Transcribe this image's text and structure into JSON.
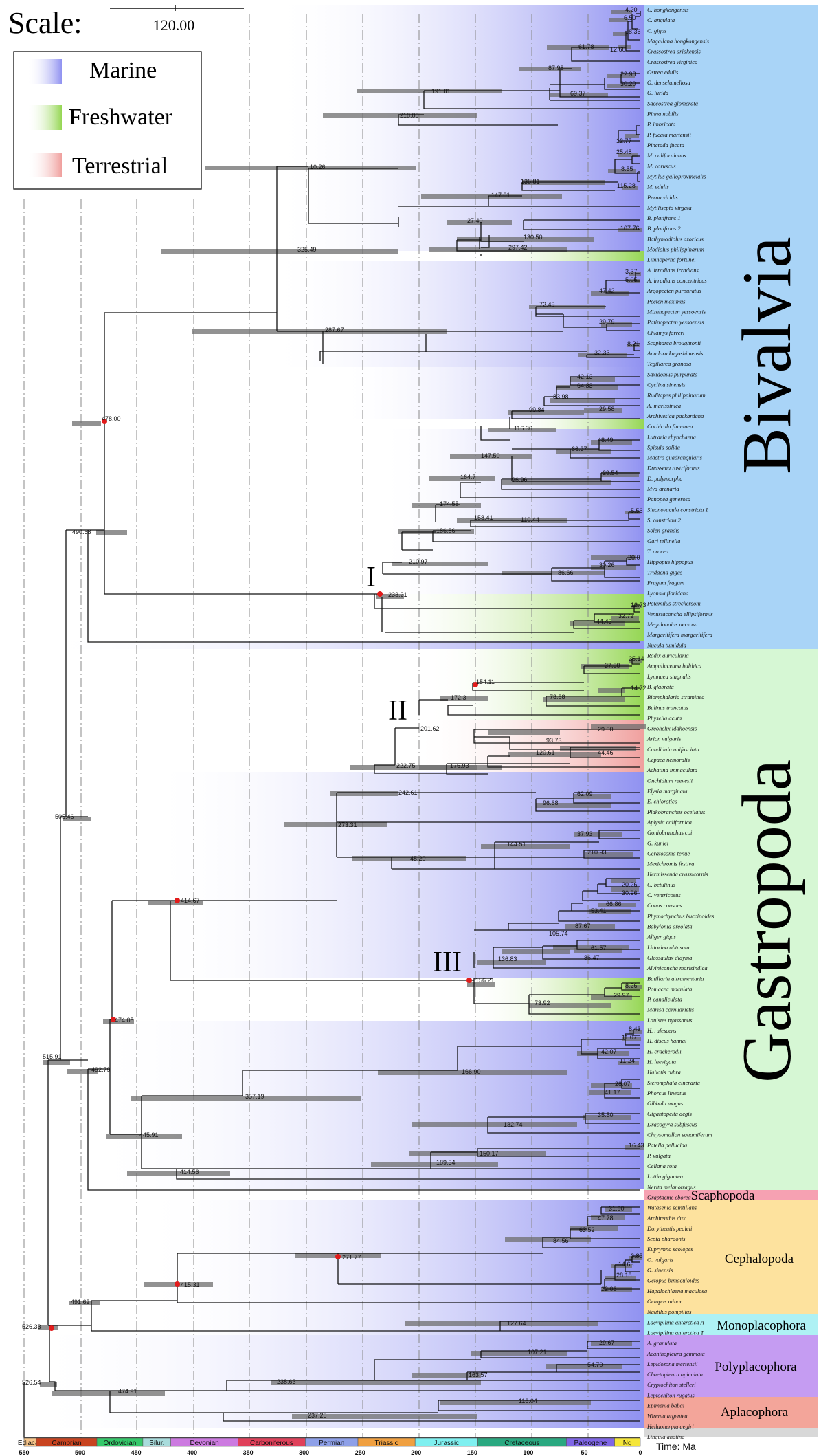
{
  "scale": {
    "label": "Scale:",
    "value": "120.00"
  },
  "legend": [
    {
      "label": "Marine",
      "color": "#8a8cf0"
    },
    {
      "label": "Freshwater",
      "color": "#8fd44a"
    },
    {
      "label": "Terrestrial",
      "color": "#ef9a98"
    }
  ],
  "axis": {
    "unit": "Time: Ma",
    "ticks": [
      "550",
      "500",
      "450",
      "400",
      "350",
      "300",
      "250",
      "200",
      "150",
      "100",
      "50",
      "0"
    ],
    "periods": [
      {
        "name": "Ediacar.",
        "color": "#f6c58a"
      },
      {
        "name": "Cambrian",
        "color": "#c8431f"
      },
      {
        "name": "Ordovician",
        "color": "#35c86a"
      },
      {
        "name": "Silur.",
        "color": "#a9dcdc"
      },
      {
        "name": "Devonian",
        "color": "#cc7ae0"
      },
      {
        "name": "Carboniferous",
        "color": "#e0405a"
      },
      {
        "name": "Permian",
        "color": "#8ea0e8"
      },
      {
        "name": "Triassic",
        "color": "#f0a040"
      },
      {
        "name": "Jurassic",
        "color": "#7ff0f0"
      },
      {
        "name": "Cretaceous",
        "color": "#2aa880"
      },
      {
        "name": "Paleogene",
        "color": "#7f66e6"
      },
      {
        "name": "Ng",
        "color": "#f5e63a"
      }
    ]
  },
  "groups": [
    {
      "name": "Bivalvia",
      "color": "#a9d4f7"
    },
    {
      "name": "Gastropoda",
      "color": "#d6f7d4"
    },
    {
      "name": "Scaphopoda",
      "color": "#f6a1b2"
    },
    {
      "name": "Cephalopoda",
      "color": "#fde29e"
    },
    {
      "name": "Monoplacophora",
      "color": "#aef1f4"
    },
    {
      "name": "Polyplacophora",
      "color": "#c59cf2"
    },
    {
      "name": "Aplacophora",
      "color": "#f3a59a"
    }
  ],
  "clade_markers": [
    "I",
    "II",
    "III"
  ],
  "species": [
    "C. hongkongensis",
    "C. angulata",
    "C. gigas",
    "Magallana hongkongensis",
    "Crassostrea ariakensis",
    "Crassostrea virginica",
    "Ostrea edulis",
    "O. denselamellosa",
    "O. lurida",
    "Saccostrea glomerata",
    "Pinna nobilis",
    "P. imbricata",
    "P. fucata martensii",
    "Pinctada fucata",
    "M. californianus",
    "M. coruscus",
    "Mytilus galloprovincialis",
    "M. edulis",
    "Perna viridis",
    "Mytilisepta virgata",
    "B. platifrons 1",
    "B. platifrons 2",
    "Bathymodiolus azoricus",
    "Modiolus philippinarum",
    "Limnoperna fortunei",
    "A. irradians irradians",
    "A. irradians concentricus",
    "Argopecten purpuratus",
    "Pecten maximus",
    "Mizuhopecten yessoensis",
    "Patinopecten yessoensis",
    "Chlamys farreri",
    "Scapharca broughtonii",
    "Anadara kagoshimensis",
    "Tegillarca granosa",
    "Saxidomus purpurata",
    "Cyclina sinensis",
    "Ruditapes philippinarum",
    "A. marissinica",
    "Archivesica packardana",
    "Corbicula fluminea",
    "Lutraria rhynchaena",
    "Spisula solida",
    "Mactra quadrangularis",
    "Dreissena rostriformis",
    "D. polymorpha",
    "Mya arenaria",
    "Panopea generosa",
    "Sinonovacula constricta 1",
    "S. constricta 2",
    "Solen grandis",
    "Gari tellinella",
    "T. crocea",
    "Hippopus hippopus",
    "Tridacna gigas",
    "Fragum fragum",
    "Lyonsia floridana",
    "Potamilus streckersoni",
    "Venustaconcha ellipsiformis",
    "Megalonaias nervosa",
    "Margaritifera margaritifera",
    "Nucula tumidula",
    "Radix auricularia",
    "Ampullaceana balthica",
    "Lymnaea stagnalis",
    "B. glabrata",
    "Biomphalaria straminea",
    "Bulinus truncatus",
    "Physella acuta",
    "Oreohelix idahoensis",
    "Arion vulgaris",
    "Candidula unifasciata",
    "Cepaea nemoralis",
    "Achatina immaculata",
    "Onchidium reevesii",
    "Elysia marginata",
    "E. chlorotica",
    "Plakobranchus ocellatus",
    "Aplysia californica",
    "Goniobranchus coi",
    "G. kuniei",
    "Ceratosoma tenue",
    "Mexichromis festiva",
    "Hermissenda crassicornis",
    "C. betulinus",
    "C. ventricosus",
    "Conus consors",
    "Phymorhynchus buccinoides",
    "Babylonia areolata",
    "Aliger gigas",
    "Littorina obtusata",
    "Glossaulax didyma",
    "Alviniconcha marisindica",
    "Batillaria attramentaria",
    "Pomacea maculata",
    "P. canaliculata",
    "Marisa cornuarietis",
    "Lanistes nyassanus",
    "H. rufescens",
    "H. discus hannai",
    "H. cracherodii",
    "H. laevigata",
    "Haliotis rubra",
    "Steromphala cineraria",
    "Phorcus lineatus",
    "Gibbula magus",
    "Gigantopelta aegis",
    "Dracogyra subfuscus",
    "Chrysomallon squamiferum",
    "Patella pellucida",
    "P. vulgata",
    "Cellana rota",
    "Lottia gigantea",
    "Nerita melanotragus",
    "Graptacme eborea",
    "Watasenia scintillans",
    "Architeuthis dux",
    "Dorytheutis pealeii",
    "Sepia pharaonis",
    "Euprymna scolopes",
    "O. vulgaris",
    "O. sinensis",
    "Octopus bimaculoides",
    "Hapalochlaena maculosa",
    "Octopus minor",
    "Nautilus pompilius",
    "Laevipilina antarctica A",
    "Laevipilina antarctica T",
    "A. granulata",
    "Acanthopleura gemmata",
    "Lepidozona mertensii",
    "Chaetopleura apiculata",
    "Cryptochiton stelleri",
    "Leptochiton rugatus",
    "Epimenia babai",
    "Wirenia argentea",
    "Helluoherpia aegiri",
    "Lingula anatina"
  ],
  "node_labels": [
    "4.20",
    "6.50",
    "18.36",
    "12.60",
    "61.78",
    "87.98",
    "22.98",
    "30.20",
    "69.37",
    "191.81",
    "218.00",
    "10.26",
    "12.77",
    "25.48",
    "8.55",
    "115.28",
    "136.81",
    "147.01",
    "27.40",
    "107.76",
    "130.50",
    "297.42",
    "325.49",
    "3.37",
    "5.05",
    "47.42",
    "72.49",
    "29.79",
    "287.67",
    "8.21",
    "32.33",
    "478.00",
    "42.13",
    "64.33",
    "83.98",
    "99.84",
    "29.58",
    "116.36",
    "48.49",
    "66.37",
    "147.50",
    "164.7",
    "96.96",
    "29.54",
    "174.55",
    "158.41",
    "110.44",
    "5.56",
    "186.86",
    "210.97",
    "20.0",
    "30.26",
    "86.66",
    "233.21",
    "12.73",
    "32.72",
    "44.43",
    "490.68",
    "505.46",
    "35.14",
    "37.50",
    "154.11",
    "14.72",
    "172.3",
    "78.88",
    "201.62",
    "29.00",
    "93.73",
    "120.61",
    "44.46",
    "222.75",
    "176.93",
    "242.61",
    "62.09",
    "96.68",
    "273.31",
    "37.93",
    "144.51",
    "210.93",
    "45.20",
    "414.67",
    "20.26",
    "30.96",
    "66.86",
    "53.41",
    "87.67",
    "105.74",
    "61.57",
    "86.47",
    "136.83",
    "156.21",
    "8.26",
    "29.97",
    "73.92",
    "474.05",
    "8.43",
    "11.07",
    "42.07",
    "11.24",
    "166.90",
    "28.07",
    "41.17",
    "357.19",
    "35.50",
    "132.74",
    "445.91",
    "16.43",
    "150.17",
    "189.34",
    "414.56",
    "492.79",
    "515.91",
    "31.90",
    "47.78",
    "63.52",
    "84.56",
    "3.85",
    "14.63",
    "28.18",
    "22.06",
    "271.77",
    "415.31",
    "491.62",
    "127.64",
    "29.67",
    "107.21",
    "163.57",
    "54.70",
    "238.63",
    "474.91",
    "116.04",
    "237.25",
    "526.33",
    "526.54"
  ]
}
